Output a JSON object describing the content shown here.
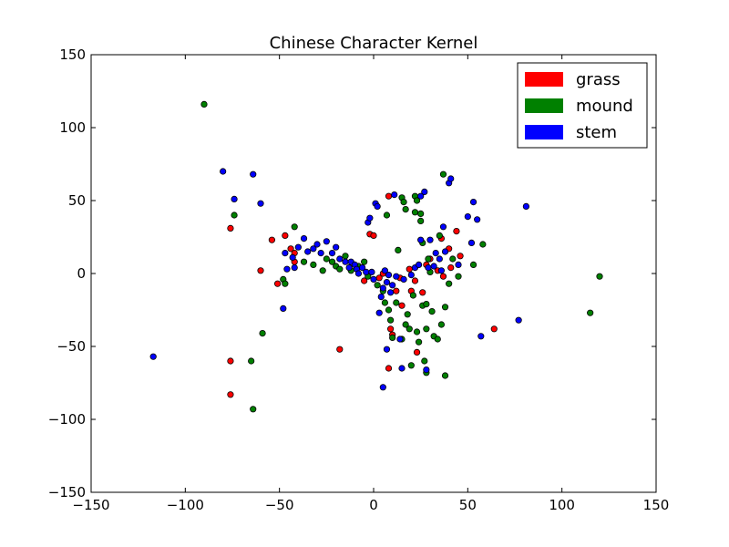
{
  "chart_data": {
    "type": "scatter",
    "title": "Chinese Character Kernel",
    "xlabel": "",
    "ylabel": "",
    "xlim": [
      -150,
      150
    ],
    "ylim": [
      -150,
      150
    ],
    "xticks": [
      -150,
      -100,
      -50,
      0,
      50,
      100,
      150
    ],
    "yticks": [
      -150,
      -100,
      -50,
      0,
      50,
      100,
      150
    ],
    "xtick_labels": [
      "−150",
      "−100",
      "−50",
      "0",
      "50",
      "100",
      "150"
    ],
    "ytick_labels": [
      "−150",
      "−100",
      "−50",
      "0",
      "50",
      "100",
      "150"
    ],
    "grid": false,
    "legend_position": "top-right",
    "series": [
      {
        "name": "grass",
        "color": "#ff0000",
        "points": [
          [
            -76,
            31
          ],
          [
            -76,
            -60
          ],
          [
            -76,
            -83
          ],
          [
            -60,
            2
          ],
          [
            -54,
            23
          ],
          [
            -51,
            -7
          ],
          [
            -47,
            26
          ],
          [
            -44,
            17
          ],
          [
            -42,
            14
          ],
          [
            -42,
            8
          ],
          [
            -18,
            -52
          ],
          [
            -5,
            -5
          ],
          [
            -2,
            27
          ],
          [
            0,
            26
          ],
          [
            3,
            -3
          ],
          [
            5,
            0
          ],
          [
            8,
            53
          ],
          [
            8,
            -65
          ],
          [
            9,
            -38
          ],
          [
            10,
            -42
          ],
          [
            12,
            -12
          ],
          [
            14,
            -3
          ],
          [
            15,
            -22
          ],
          [
            19,
            3
          ],
          [
            20,
            -12
          ],
          [
            22,
            -5
          ],
          [
            23,
            -54
          ],
          [
            26,
            -13
          ],
          [
            28,
            6
          ],
          [
            30,
            10
          ],
          [
            34,
            2
          ],
          [
            36,
            24
          ],
          [
            37,
            -2
          ],
          [
            40,
            17
          ],
          [
            41,
            4
          ],
          [
            44,
            29
          ],
          [
            46,
            12
          ],
          [
            64,
            -38
          ]
        ]
      },
      {
        "name": "mound",
        "color": "#008000",
        "points": [
          [
            -90,
            116
          ],
          [
            -74,
            40
          ],
          [
            -65,
            -60
          ],
          [
            -64,
            -93
          ],
          [
            -59,
            -41
          ],
          [
            -48,
            -4
          ],
          [
            -47,
            -7
          ],
          [
            -42,
            32
          ],
          [
            -37,
            8
          ],
          [
            -32,
            6
          ],
          [
            -27,
            2
          ],
          [
            -25,
            10
          ],
          [
            -22,
            8
          ],
          [
            -20,
            5
          ],
          [
            -18,
            3
          ],
          [
            -15,
            12
          ],
          [
            -12,
            2
          ],
          [
            -8,
            5
          ],
          [
            -5,
            8
          ],
          [
            -3,
            -2
          ],
          [
            2,
            -8
          ],
          [
            5,
            -12
          ],
          [
            6,
            -20
          ],
          [
            7,
            40
          ],
          [
            8,
            -25
          ],
          [
            9,
            -32
          ],
          [
            10,
            -44
          ],
          [
            12,
            -20
          ],
          [
            13,
            16
          ],
          [
            15,
            52
          ],
          [
            15,
            -45
          ],
          [
            16,
            49
          ],
          [
            17,
            -35
          ],
          [
            17,
            44
          ],
          [
            18,
            -28
          ],
          [
            19,
            -38
          ],
          [
            20,
            -63
          ],
          [
            21,
            -15
          ],
          [
            22,
            42
          ],
          [
            22,
            53
          ],
          [
            23,
            50
          ],
          [
            23,
            -40
          ],
          [
            24,
            -47
          ],
          [
            25,
            36
          ],
          [
            25,
            41
          ],
          [
            26,
            -22
          ],
          [
            26,
            21
          ],
          [
            27,
            -60
          ],
          [
            28,
            -68
          ],
          [
            28,
            -38
          ],
          [
            28,
            -21
          ],
          [
            29,
            10
          ],
          [
            30,
            1
          ],
          [
            31,
            -26
          ],
          [
            32,
            -43
          ],
          [
            34,
            -45
          ],
          [
            35,
            26
          ],
          [
            36,
            -35
          ],
          [
            37,
            68
          ],
          [
            38,
            -70
          ],
          [
            38,
            -23
          ],
          [
            40,
            -7
          ],
          [
            42,
            10
          ],
          [
            45,
            -2
          ],
          [
            53,
            6
          ],
          [
            58,
            20
          ],
          [
            115,
            -27
          ],
          [
            120,
            -2
          ]
        ]
      },
      {
        "name": "stem",
        "color": "#0000ff",
        "points": [
          [
            -117,
            -57
          ],
          [
            -80,
            70
          ],
          [
            -74,
            51
          ],
          [
            -64,
            68
          ],
          [
            -60,
            48
          ],
          [
            -48,
            -24
          ],
          [
            -47,
            14
          ],
          [
            -46,
            3
          ],
          [
            -43,
            11
          ],
          [
            -42,
            4
          ],
          [
            -40,
            18
          ],
          [
            -37,
            24
          ],
          [
            -35,
            15
          ],
          [
            -32,
            17
          ],
          [
            -30,
            20
          ],
          [
            -28,
            14
          ],
          [
            -25,
            22
          ],
          [
            -22,
            14
          ],
          [
            -20,
            18
          ],
          [
            -18,
            10
          ],
          [
            -15,
            8
          ],
          [
            -13,
            4
          ],
          [
            -12,
            8
          ],
          [
            -10,
            6
          ],
          [
            -9,
            3
          ],
          [
            -8,
            0
          ],
          [
            -6,
            4
          ],
          [
            -4,
            1
          ],
          [
            -3,
            35
          ],
          [
            -2,
            38
          ],
          [
            -1,
            1
          ],
          [
            0,
            -4
          ],
          [
            1,
            48
          ],
          [
            2,
            46
          ],
          [
            3,
            -27
          ],
          [
            4,
            -16
          ],
          [
            5,
            -10
          ],
          [
            5,
            -78
          ],
          [
            6,
            2
          ],
          [
            7,
            -6
          ],
          [
            7,
            -52
          ],
          [
            8,
            -1
          ],
          [
            9,
            -13
          ],
          [
            10,
            -8
          ],
          [
            11,
            54
          ],
          [
            12,
            -2
          ],
          [
            14,
            -45
          ],
          [
            15,
            -65
          ],
          [
            16,
            -4
          ],
          [
            20,
            -1
          ],
          [
            22,
            4
          ],
          [
            24,
            6
          ],
          [
            25,
            23
          ],
          [
            25,
            53
          ],
          [
            27,
            56
          ],
          [
            28,
            -66
          ],
          [
            29,
            4
          ],
          [
            30,
            23
          ],
          [
            32,
            5
          ],
          [
            33,
            14
          ],
          [
            35,
            10
          ],
          [
            36,
            2
          ],
          [
            37,
            32
          ],
          [
            38,
            15
          ],
          [
            40,
            62
          ],
          [
            41,
            65
          ],
          [
            45,
            6
          ],
          [
            50,
            39
          ],
          [
            52,
            21
          ],
          [
            53,
            49
          ],
          [
            55,
            37
          ],
          [
            57,
            -43
          ],
          [
            77,
            -32
          ],
          [
            81,
            46
          ]
        ]
      }
    ]
  }
}
